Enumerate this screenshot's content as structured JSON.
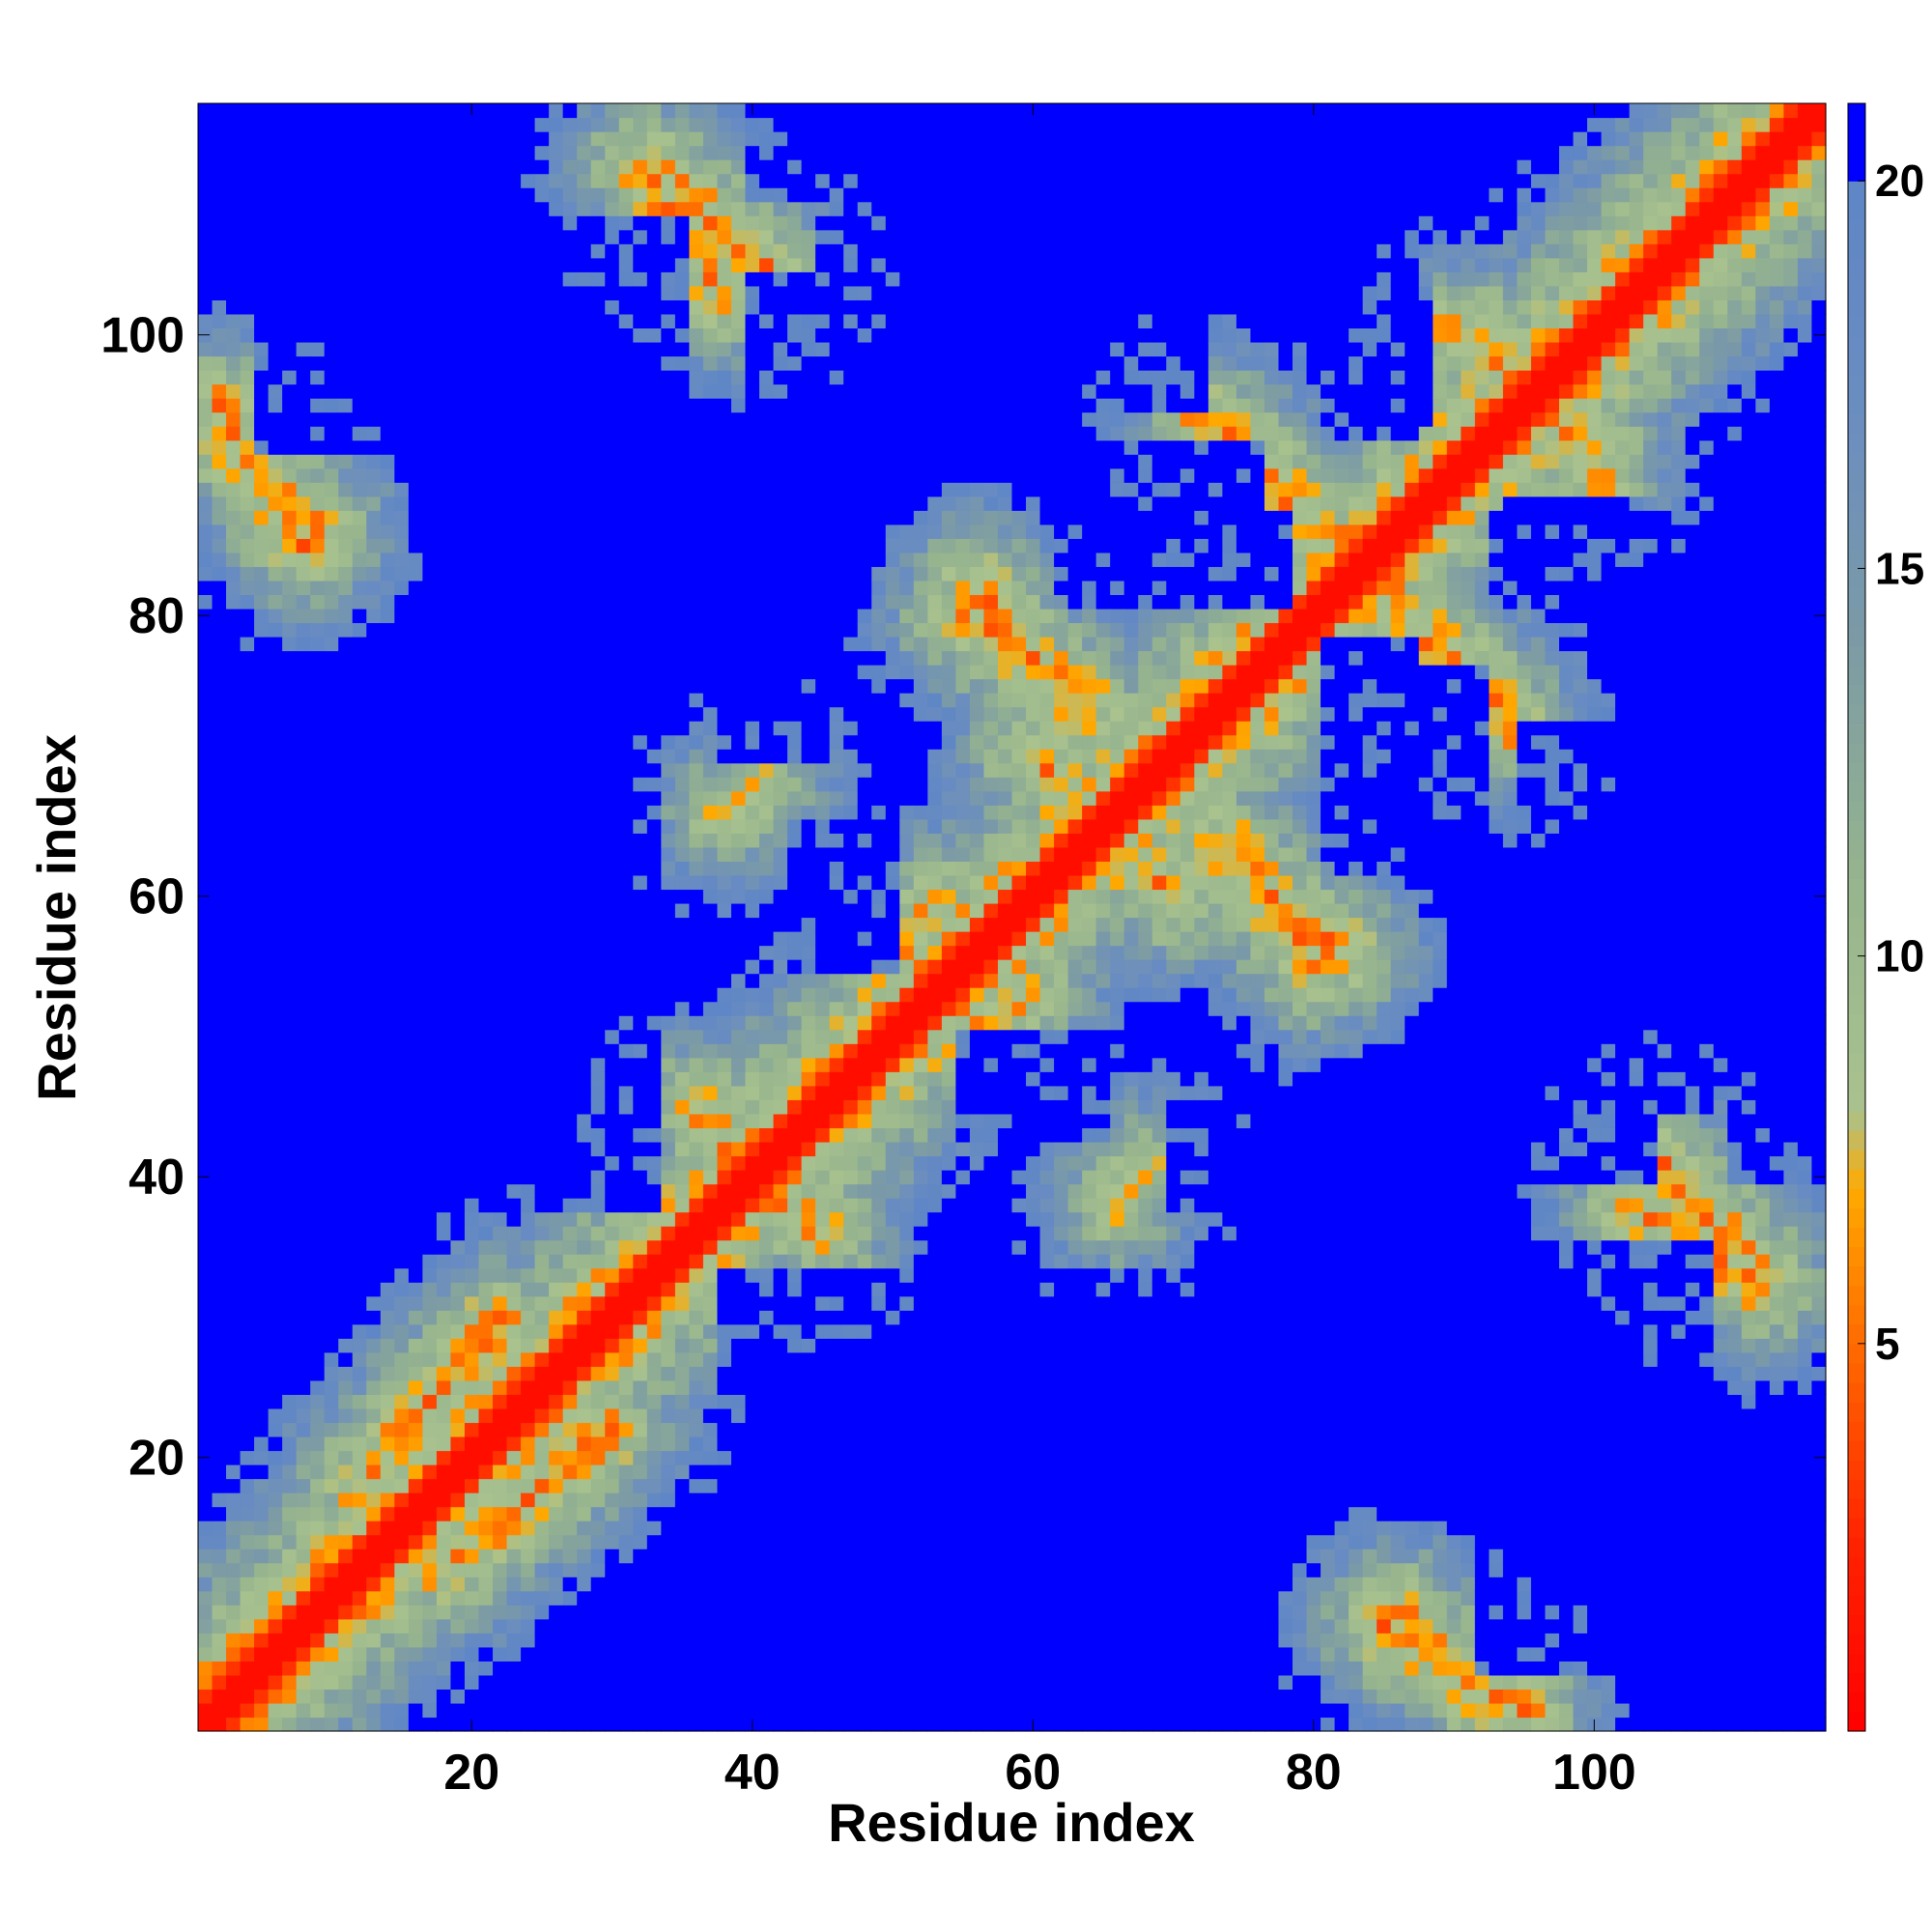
{
  "chart_data": {
    "type": "heatmap",
    "title": "",
    "xlabel": "Residue index",
    "ylabel": "Residue index",
    "n_residues": 116,
    "xlim": [
      0.5,
      116.5
    ],
    "ylim": [
      0.5,
      116.5
    ],
    "x_ticks": [
      20,
      40,
      60,
      80,
      100
    ],
    "y_ticks": [
      20,
      40,
      60,
      80,
      100
    ],
    "colorbar": {
      "ticks": [
        5,
        10,
        15,
        20
      ],
      "range": [
        0,
        21
      ],
      "stops": [
        {
          "value": 0,
          "color": "#ff0000"
        },
        {
          "value": 2.5,
          "color": "#ff2400"
        },
        {
          "value": 5,
          "color": "#ff6a00"
        },
        {
          "value": 7,
          "color": "#ffaa00"
        },
        {
          "value": 8,
          "color": "#a9c28e"
        },
        {
          "value": 11,
          "color": "#96b48e"
        },
        {
          "value": 14,
          "color": "#7c9ba5"
        },
        {
          "value": 17,
          "color": "#6a8dc0"
        },
        {
          "value": 19.9,
          "color": "#5f86c6"
        },
        {
          "value": 20,
          "color": "#0000ff"
        },
        {
          "value": 21,
          "color": "#0000ff"
        }
      ]
    },
    "cutoff": 20,
    "contact_bands": [
      {
        "i": [
          2,
          8
        ],
        "j": [
          85,
          95
        ],
        "dir": "anti",
        "value": 6
      },
      {
        "i": [
          32,
          38
        ],
        "j": [
          103,
          112
        ],
        "dir": "anti",
        "value": 6
      },
      {
        "i": [
          12,
          22
        ],
        "j": [
          18,
          30
        ],
        "dir": "par",
        "value": 6
      },
      {
        "i": [
          36,
          40
        ],
        "j": [
          38,
          45
        ],
        "dir": "anti",
        "value": 6
      },
      {
        "i": [
          56,
          63
        ],
        "j": [
          73,
          82
        ],
        "dir": "anti",
        "value": 6
      },
      {
        "i": [
          60,
          66
        ],
        "j": [
          64,
          70
        ],
        "dir": "anti",
        "value": 6
      },
      {
        "i": [
          74,
          80
        ],
        "j": [
          55,
          64
        ],
        "dir": "anti",
        "value": 6
      },
      {
        "i": [
          74,
          83
        ],
        "j": [
          83,
          93
        ],
        "dir": "anti",
        "value": 6
      },
      {
        "i": [
          84,
          94
        ],
        "j": [
          72,
          83
        ],
        "dir": "anti",
        "value": 6
      },
      {
        "i": [
          90,
          100
        ],
        "j": [
          93,
          100
        ],
        "dir": "anti",
        "value": 6
      },
      {
        "i": [
          86,
          92
        ],
        "j": [
          3,
          9
        ],
        "dir": "anti",
        "value": 6
      },
      {
        "i": [
          104,
          112
        ],
        "j": [
          33,
          42
        ],
        "dir": "anti",
        "value": 6
      },
      {
        "i": [
          66,
          68
        ],
        "j": [
          38,
          41
        ],
        "dir": "par",
        "value": 7
      },
      {
        "i": [
          51,
          53
        ],
        "j": [
          56,
          60
        ],
        "dir": "par",
        "value": 7
      }
    ],
    "empty_regions": [
      {
        "i": [
          6,
          33
        ],
        "j": [
          96,
          108
        ]
      },
      {
        "i": [
          40,
          59
        ],
        "j": [
          95,
          104
        ]
      },
      {
        "i": [
          63,
          78
        ],
        "j": [
          81,
          87
        ]
      },
      {
        "i": [
          81,
          88
        ],
        "j": [
          94,
          103
        ]
      },
      {
        "i": [
          93,
          105
        ],
        "j": [
          82,
          87
        ]
      },
      {
        "i": [
          7,
          33
        ],
        "j": [
          40,
          74
        ]
      },
      {
        "i": [
          38,
          56
        ],
        "j": [
          3,
          33
        ]
      },
      {
        "i": [
          60,
          75
        ],
        "j": [
          6,
          30
        ]
      },
      {
        "i": [
          92,
          108
        ],
        "j": [
          5,
          35
        ]
      },
      {
        "i": [
          82,
          92
        ],
        "j": [
          62,
          76
        ]
      },
      {
        "i": [
          95,
          108
        ],
        "j": [
          45,
          72
        ]
      },
      {
        "i": [
          38,
          45
        ],
        "j": [
          70,
          82
        ]
      },
      {
        "i": [
          43,
          50
        ],
        "j": [
          55,
          65
        ]
      },
      {
        "i": [
          110,
          116
        ],
        "j": [
          40,
          80
        ]
      },
      {
        "i": [
          1,
          5
        ],
        "j": [
          40,
          80
        ]
      }
    ]
  }
}
